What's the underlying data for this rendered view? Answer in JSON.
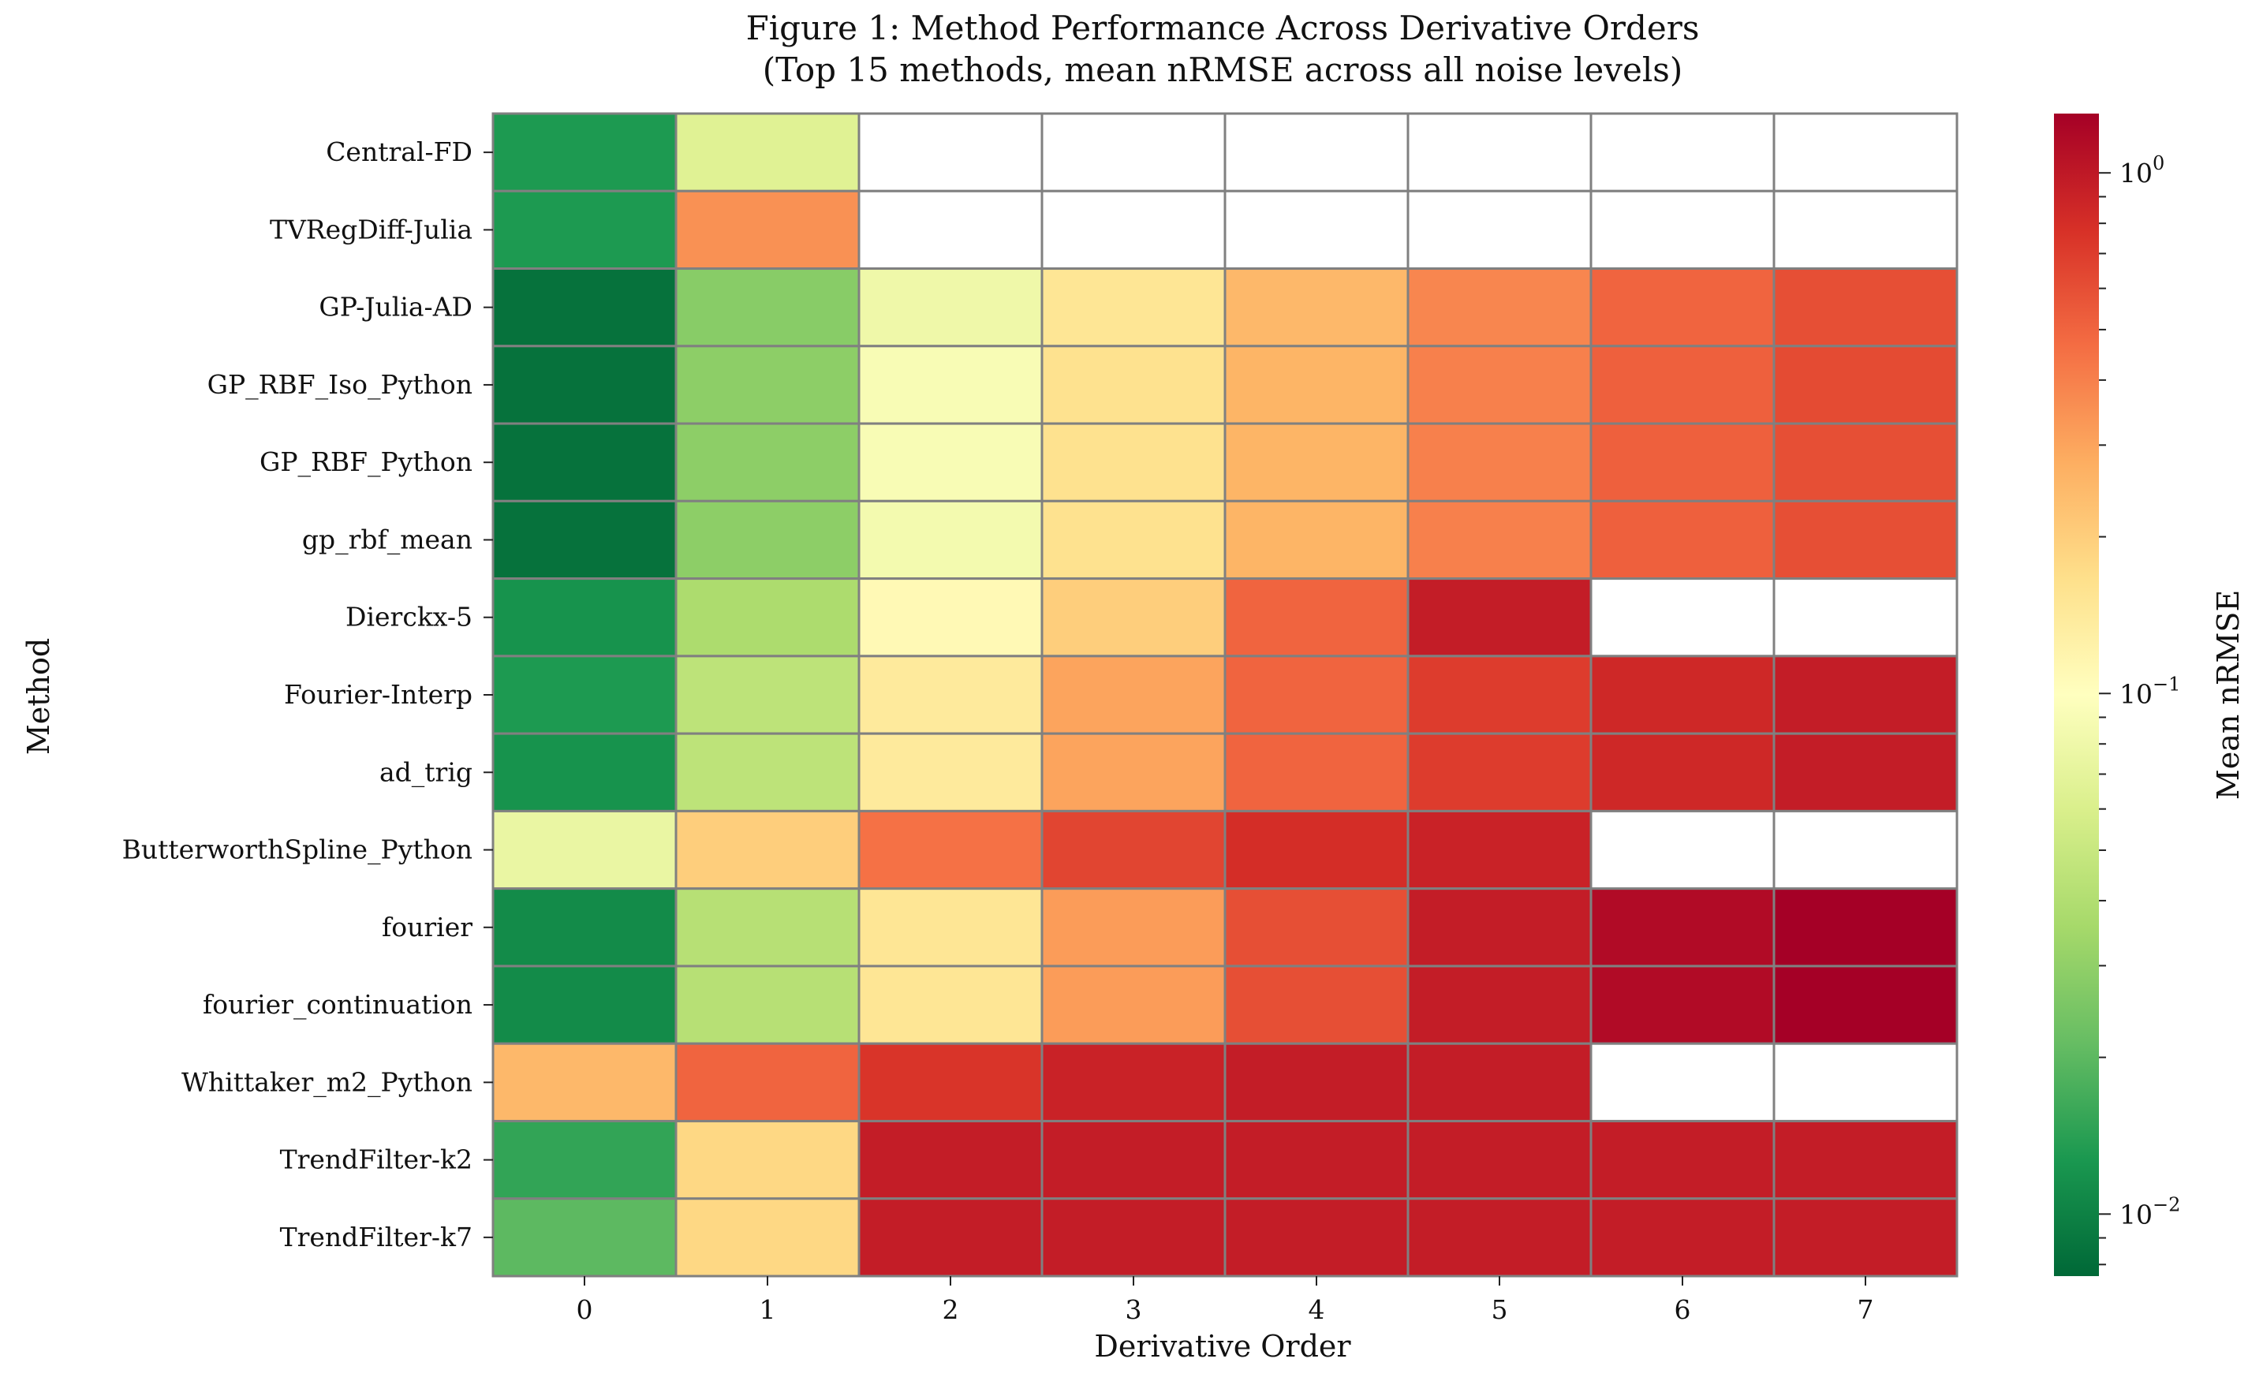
{
  "chart_data": {
    "type": "heatmap",
    "title": "Figure 1: Method Performance Across Derivative Orders",
    "subtitle": "(Top 15 methods, mean nRMSE across all noise levels)",
    "xlabel": "Derivative Order",
    "ylabel": "Method",
    "colorbar_label": "Mean nRMSE",
    "colormap": "RdYlGn_r",
    "color_scale": "log",
    "color_range": [
      0.0076,
      1.3
    ],
    "colorbar_ticks": [
      {
        "value": 1,
        "label": "10",
        "exp": "0"
      },
      {
        "value": 0.1,
        "label": "10",
        "exp": "−1"
      },
      {
        "value": 0.01,
        "label": "10",
        "exp": "−2"
      }
    ],
    "x_categories": [
      "0",
      "1",
      "2",
      "3",
      "4",
      "5",
      "6",
      "7"
    ],
    "y_categories": [
      "Central-FD",
      "TVRegDiff-Julia",
      "GP-Julia-AD",
      "GP_RBF_Iso_Python",
      "GP_RBF_Python",
      "gp_rbf_mean",
      "Dierckx-5",
      "Fourier-Interp",
      "ad_trig",
      "ButterworthSpline_Python",
      "fourier",
      "fourier_continuation",
      "Whittaker_m2_Python",
      "TrendFilter-k2",
      "TrendFilter-k7"
    ],
    "values": [
      [
        0.013,
        0.065,
        null,
        null,
        null,
        null,
        null,
        null
      ],
      [
        0.013,
        0.35,
        null,
        null,
        null,
        null,
        null,
        null
      ],
      [
        0.0085,
        0.028,
        0.08,
        0.15,
        0.25,
        0.38,
        0.5,
        0.6
      ],
      [
        0.0085,
        0.029,
        0.09,
        0.16,
        0.26,
        0.4,
        0.52,
        0.62
      ],
      [
        0.0085,
        0.029,
        0.09,
        0.16,
        0.26,
        0.4,
        0.52,
        0.6
      ],
      [
        0.0085,
        0.029,
        0.085,
        0.16,
        0.26,
        0.4,
        0.52,
        0.6
      ],
      [
        0.012,
        0.038,
        0.11,
        0.2,
        0.5,
        0.95,
        null,
        null
      ],
      [
        0.013,
        0.045,
        0.14,
        0.3,
        0.5,
        0.7,
        0.85,
        0.95
      ],
      [
        0.012,
        0.045,
        0.14,
        0.3,
        0.5,
        0.7,
        0.85,
        0.95
      ],
      [
        0.075,
        0.2,
        0.45,
        0.65,
        0.8,
        0.9,
        null,
        null
      ],
      [
        0.011,
        0.042,
        0.15,
        0.32,
        0.6,
        0.95,
        1.15,
        1.3
      ],
      [
        0.011,
        0.042,
        0.15,
        0.32,
        0.6,
        0.95,
        1.15,
        1.3
      ],
      [
        0.25,
        0.5,
        0.75,
        0.9,
        0.95,
        0.95,
        null,
        null
      ],
      [
        0.015,
        0.18,
        0.95,
        0.95,
        0.95,
        0.95,
        0.95,
        0.95
      ],
      [
        0.02,
        0.18,
        0.95,
        0.95,
        0.95,
        0.95,
        0.95,
        0.95
      ]
    ]
  }
}
